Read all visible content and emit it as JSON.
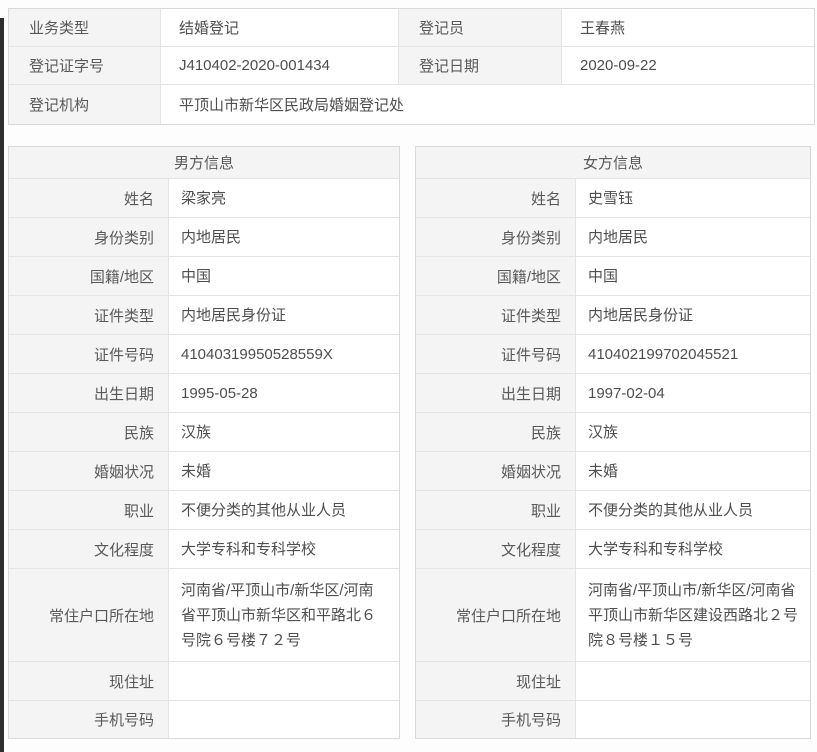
{
  "colors": {
    "label_cell_bg": "#f3f4f3",
    "table_border": "#e4e4e4",
    "label_text": "#595959",
    "value_text": "#4e4e4e",
    "window_edge": "#2e2e2e"
  },
  "summary": {
    "business_type_label": "业务类型",
    "business_type_value": "结婚登记",
    "registrar_label": "登记员",
    "registrar_value": "王春燕",
    "cert_no_label": "登记证字号",
    "cert_no_value": "J410402-2020-001434",
    "reg_date_label": "登记日期",
    "reg_date_value": "2020-09-22",
    "agency_label": "登记机构",
    "agency_value": "平顶山市新华区民政局婚姻登记处"
  },
  "male": {
    "header": "男方信息",
    "fields": [
      {
        "label": "姓名",
        "value": "梁家亮"
      },
      {
        "label": "身份类别",
        "value": "内地居民"
      },
      {
        "label": "国籍/地区",
        "value": "中国"
      },
      {
        "label": "证件类型",
        "value": "内地居民身份证"
      },
      {
        "label": "证件号码",
        "value": "41040319950528559X"
      },
      {
        "label": "出生日期",
        "value": "1995-05-28"
      },
      {
        "label": "民族",
        "value": "汉族"
      },
      {
        "label": "婚姻状况",
        "value": "未婚"
      },
      {
        "label": "职业",
        "value": "不便分类的其他从业人员"
      },
      {
        "label": "文化程度",
        "value": "大学专科和专科学校"
      },
      {
        "label": "常住户口所在地",
        "value": "河南省/平顶山市/新华区/河南省平顶山市新华区和平路北６号院６号楼７２号"
      },
      {
        "label": "现住址",
        "value": ""
      },
      {
        "label": "手机号码",
        "value": ""
      }
    ]
  },
  "female": {
    "header": "女方信息",
    "fields": [
      {
        "label": "姓名",
        "value": "史雪钰"
      },
      {
        "label": "身份类别",
        "value": "内地居民"
      },
      {
        "label": "国籍/地区",
        "value": "中国"
      },
      {
        "label": "证件类型",
        "value": "内地居民身份证"
      },
      {
        "label": "证件号码",
        "value": "410402199702045521"
      },
      {
        "label": "出生日期",
        "value": "1997-02-04"
      },
      {
        "label": "民族",
        "value": "汉族"
      },
      {
        "label": "婚姻状况",
        "value": "未婚"
      },
      {
        "label": "职业",
        "value": "不便分类的其他从业人员"
      },
      {
        "label": "文化程度",
        "value": "大学专科和专科学校"
      },
      {
        "label": "常住户口所在地",
        "value": "河南省/平顶山市/新华区/河南省平顶山市新华区建设西路北２号院８号楼１５号"
      },
      {
        "label": "现住址",
        "value": ""
      },
      {
        "label": "手机号码",
        "value": ""
      }
    ]
  }
}
